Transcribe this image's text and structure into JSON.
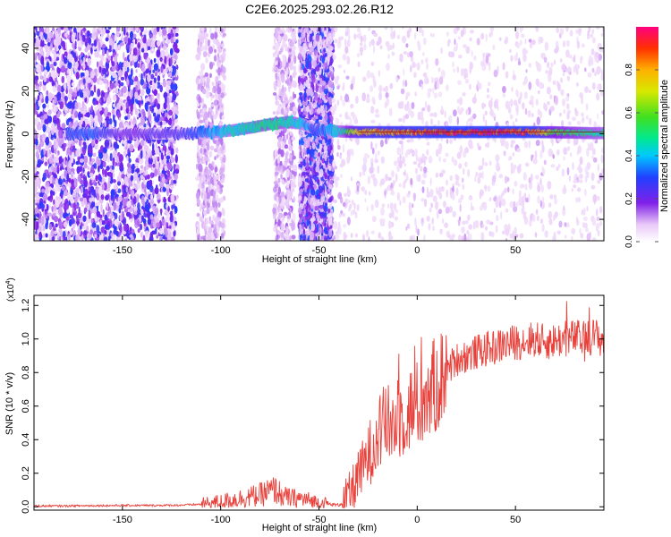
{
  "title": "C2E6.2025.293.02.26.R12",
  "chart_data": [
    {
      "type": "heatmap",
      "title": "C2E6.2025.293.02.26.R12",
      "xlabel": "Height of straight line (km)",
      "ylabel": "Frequency (Hz)",
      "xlim": [
        -195,
        95
      ],
      "ylim": [
        -50,
        50
      ],
      "x_ticks": [
        -150,
        -100,
        -50,
        0,
        50
      ],
      "x_tick_labels": [
        "-150",
        "-100",
        "-50",
        "0",
        "50"
      ],
      "y_ticks": [
        -40,
        -20,
        0,
        20,
        40
      ],
      "y_tick_labels": [
        "-40",
        "-20",
        "0",
        "20",
        "40"
      ],
      "colorbar": {
        "label": "Normalized spectral amplitude",
        "range": [
          0,
          1
        ],
        "ticks": [
          0.0,
          0.2,
          0.4,
          0.6,
          0.8
        ],
        "tick_labels": [
          "0.0",
          "0.2",
          "0.4",
          "0.6",
          "0.8"
        ]
      },
      "ridge": {
        "x": [
          -178,
          -165,
          -150,
          -140,
          -120,
          -105,
          -95,
          -85,
          -75,
          -65,
          -58,
          -52,
          -45,
          -38,
          -30,
          -20,
          -10,
          0,
          10,
          20,
          30,
          40,
          50,
          60,
          70,
          80,
          90,
          95
        ],
        "freq": [
          0,
          0.3,
          0,
          0.2,
          0,
          0.5,
          1.5,
          2.8,
          4.5,
          5.5,
          4.5,
          2,
          1.5,
          1,
          0.8,
          0.8,
          0.8,
          0.8,
          0.8,
          0.8,
          0.8,
          0.8,
          0.8,
          0.8,
          0.7,
          0.5,
          0.3,
          0.3
        ],
        "amplitude": [
          0.3,
          0.32,
          0.2,
          0.22,
          0.25,
          0.38,
          0.45,
          0.5,
          0.52,
          0.48,
          0.42,
          0.3,
          0.38,
          0.5,
          0.8,
          0.86,
          0.88,
          0.9,
          0.95,
          0.96,
          0.96,
          0.97,
          0.95,
          0.93,
          0.6,
          0.55,
          0.5,
          0.48
        ]
      },
      "noise_bands": [
        {
          "x": [
            -195,
            -122
          ],
          "level": 0.16
        },
        {
          "x": [
            -112,
            -98
          ],
          "level": 0.06
        },
        {
          "x": [
            -73,
            -62
          ],
          "level": 0.07
        },
        {
          "x": [
            -60,
            -43
          ],
          "level": 0.18
        },
        {
          "x": [
            -43,
            95
          ],
          "level": 0.015
        }
      ]
    },
    {
      "type": "line",
      "xlabel": "Height of straight line (km)",
      "ylabel": "SNR (10 * v/v)",
      "y_multiplier": "(x10",
      "y_multiplier_exp": "4",
      "y_multiplier_close": ")",
      "xlim": [
        -195,
        95
      ],
      "ylim": [
        -0.02,
        1.26
      ],
      "x_ticks": [
        -150,
        -100,
        -50,
        0,
        50
      ],
      "x_tick_labels": [
        "-150",
        "-100",
        "-50",
        "0",
        "50"
      ],
      "y_ticks": [
        0.0,
        0.2,
        0.4,
        0.6,
        0.8,
        1.0,
        1.2
      ],
      "y_tick_labels": [
        "0.0",
        "0.2",
        "0.4",
        "0.6",
        "0.8",
        "1.0",
        "1.2"
      ],
      "series": [
        {
          "name": "SNR",
          "color": "#e8403a",
          "x": [
            -195,
            -180,
            -165,
            -150,
            -135,
            -120,
            -110,
            -100,
            -95,
            -90,
            -85,
            -80,
            -76,
            -72,
            -68,
            -64,
            -60,
            -56,
            -52,
            -48,
            -44,
            -40,
            -37,
            -34,
            -31,
            -28,
            -25,
            -22,
            -19,
            -16,
            -13,
            -10,
            -7,
            -4,
            -1,
            2,
            5,
            8,
            11,
            14,
            17,
            20,
            25,
            30,
            35,
            40,
            45,
            50,
            55,
            60,
            65,
            70,
            75,
            80,
            85,
            90,
            95
          ],
          "values": [
            0.005,
            0.005,
            0.007,
            0.008,
            0.008,
            0.01,
            0.015,
            0.03,
            0.04,
            0.05,
            0.06,
            0.07,
            0.09,
            0.1,
            0.06,
            0.05,
            0.05,
            0.04,
            0.03,
            0.02,
            0.015,
            0.01,
            0.03,
            0.08,
            0.15,
            0.22,
            0.3,
            0.38,
            0.45,
            0.5,
            0.48,
            0.52,
            0.55,
            0.58,
            0.6,
            0.62,
            0.66,
            0.7,
            0.75,
            0.8,
            0.84,
            0.88,
            0.9,
            0.92,
            0.94,
            0.95,
            0.97,
            0.98,
            0.99,
            1.0,
            0.98,
            0.99,
            1.0,
            1.01,
            1.0,
            1.02,
            0.99
          ]
        }
      ]
    }
  ]
}
